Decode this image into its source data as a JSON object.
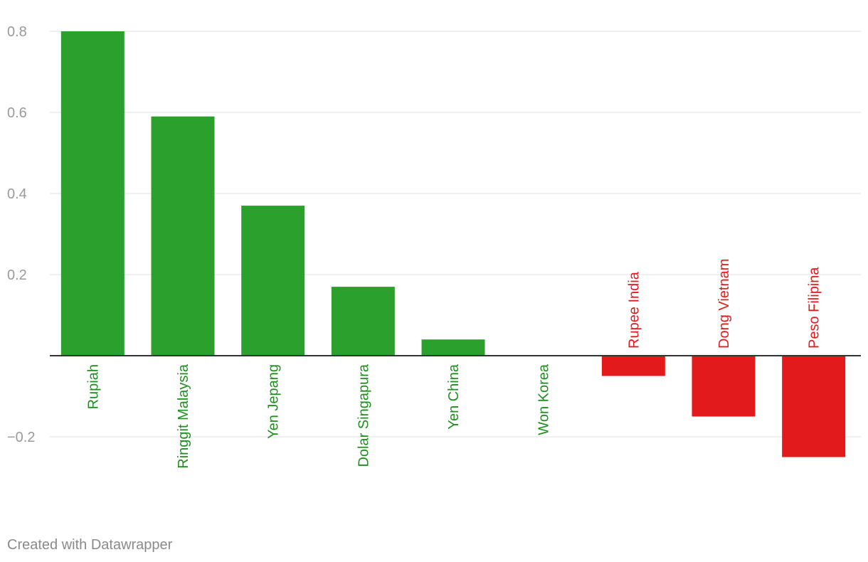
{
  "chart_data": {
    "type": "bar",
    "categories": [
      "Rupiah",
      "Ringgit Malaysia",
      "Yen Jepang",
      "Dolar Singapura",
      "Yen China",
      "Won Korea",
      "Rupee India",
      "Dong Vietnam",
      "Peso Filipina"
    ],
    "values": [
      0.8,
      0.59,
      0.37,
      0.17,
      0.04,
      0.0,
      -0.05,
      -0.15,
      -0.25
    ],
    "yticks": [
      0.8,
      0.6,
      0.4,
      0.2,
      -0.2
    ],
    "ytick_labels": [
      "0.8",
      "0.6",
      "0.4",
      "0.2",
      "−0.2"
    ],
    "ylim": [
      -0.35,
      0.8
    ],
    "grid": true,
    "colors": {
      "positive": "#2ca02c",
      "negative": "#e31a1c",
      "positive_label": "#1e8f1e",
      "negative_label": "#e31a1c",
      "grid": "#e0e0e0",
      "baseline": "#333333"
    }
  },
  "footer": {
    "credit": "Created with Datawrapper"
  }
}
